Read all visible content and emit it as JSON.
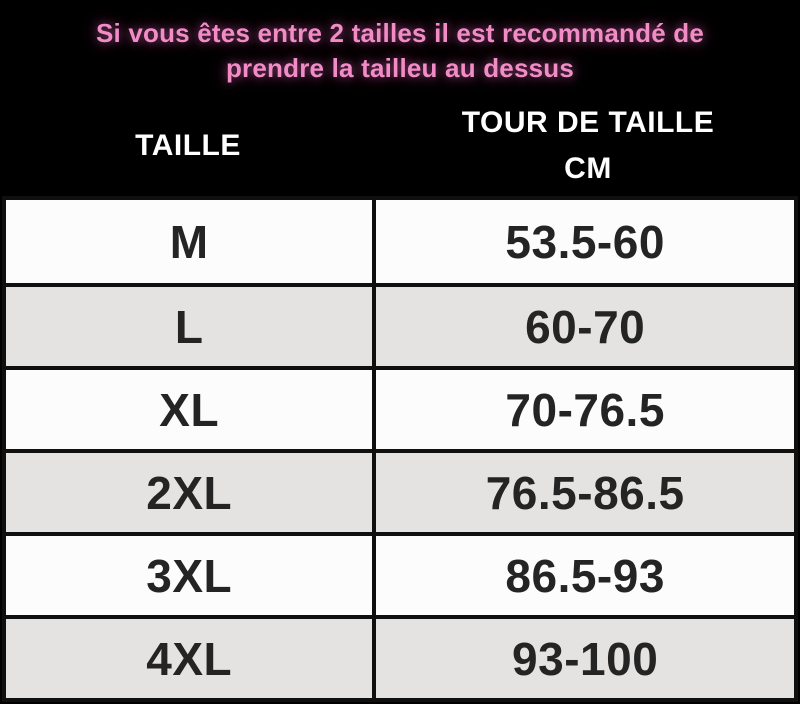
{
  "notice": {
    "line1": "Si vous êtes entre 2 tailles il est recommandé de",
    "line2": "prendre la tailleu au dessus"
  },
  "table": {
    "header": {
      "size_label": "TAILLE",
      "measure_label_line1": "TOUR DE TAILLE",
      "measure_label_line2": "CM"
    },
    "rows": [
      {
        "size": "M",
        "range": "53.5-60"
      },
      {
        "size": "L",
        "range": "60-70"
      },
      {
        "size": "XL",
        "range": "70-76.5"
      },
      {
        "size": "2XL",
        "range": "76.5-86.5"
      },
      {
        "size": "3XL",
        "range": "86.5-93"
      },
      {
        "size": "4XL",
        "range": "93-100"
      }
    ]
  },
  "colors": {
    "background": "#000000",
    "notice_pink": "#f18cc7",
    "header_text": "#ffffff",
    "row_light": "#fcfcfc",
    "row_dark": "#e4e3e1",
    "cell_text": "#242424",
    "border": "#0f0f0f"
  }
}
